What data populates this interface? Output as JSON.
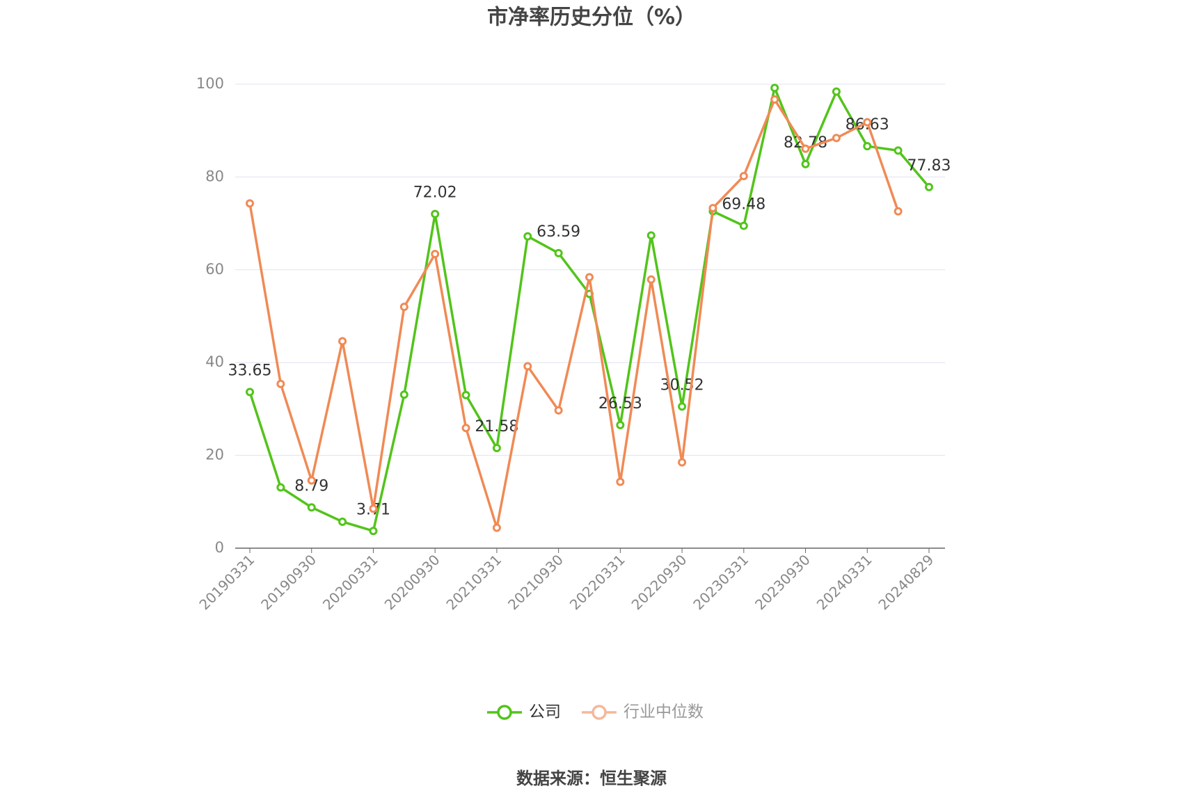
{
  "chart_data": {
    "type": "line",
    "title": "市净率历史分位（%）",
    "categories": [
      "20190331",
      null,
      "20190930",
      null,
      "20200331",
      null,
      "20200930",
      null,
      "20210331",
      null,
      "20210930",
      null,
      "20220331",
      null,
      "20220930",
      null,
      "20230331",
      null,
      "20230930",
      null,
      "20240331",
      null,
      "20240829"
    ],
    "series": [
      {
        "name": "公司",
        "color": "#52c41a",
        "values": [
          33.65,
          13.1,
          8.79,
          5.7,
          3.71,
          33.1,
          72.02,
          33.0,
          21.58,
          67.2,
          63.59,
          54.8,
          26.53,
          67.4,
          30.52,
          72.6,
          69.48,
          99.2,
          82.78,
          98.4,
          86.63,
          85.7,
          77.83
        ]
      },
      {
        "name": "行业中位数",
        "color": "#f08a55",
        "values": [
          74.3,
          35.4,
          14.6,
          44.6,
          8.5,
          52.0,
          63.4,
          25.9,
          4.4,
          39.2,
          29.7,
          58.4,
          14.3,
          57.9,
          18.5,
          73.3,
          80.2,
          96.7,
          86.1,
          88.4,
          91.8,
          72.6,
          null
        ]
      }
    ],
    "ylim": [
      0,
      100
    ],
    "yticks": [
      0,
      20,
      40,
      60,
      80,
      100
    ],
    "grid": true,
    "source": "数据来源：恒生聚源"
  }
}
